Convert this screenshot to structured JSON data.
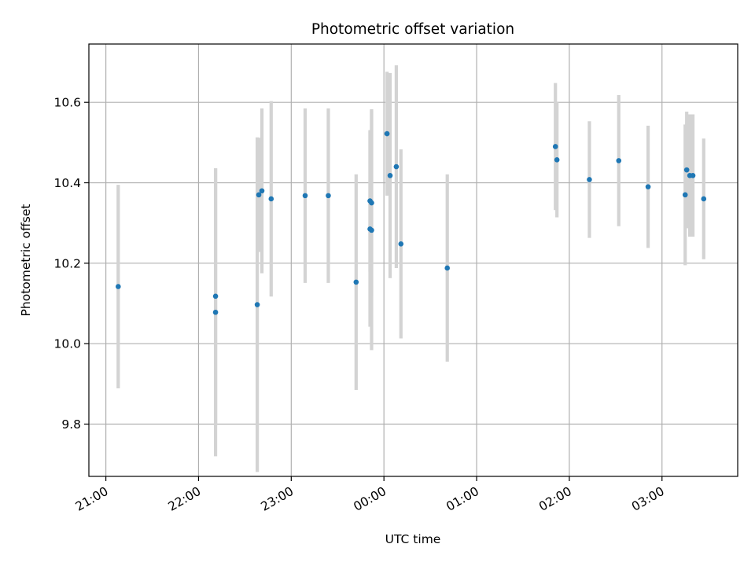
{
  "chart_data": {
    "type": "scatter",
    "title": "Photometric offset variation",
    "xlabel": "UTC time",
    "ylabel": "Photometric offset",
    "xlim": [
      "20:49",
      "03:49"
    ],
    "ylim": [
      9.67,
      10.745
    ],
    "x_ticks": [
      "21:00",
      "22:00",
      "23:00",
      "00:00",
      "01:00",
      "02:00",
      "03:00"
    ],
    "y_ticks": [
      "9.8",
      "10.0",
      "10.2",
      "10.4",
      "10.6"
    ],
    "grid": true,
    "legend": "none",
    "colors": {
      "marker": "#1f77b4",
      "errorbar": "#d3d3d3",
      "grid": "#b0b0b0"
    },
    "points": [
      {
        "t": "21:08",
        "y": 10.142,
        "err": 0.253
      },
      {
        "t": "22:11",
        "y": 10.118,
        "err": 0.318
      },
      {
        "t": "22:11",
        "y": 10.078,
        "err": 0.358
      },
      {
        "t": "22:38",
        "y": 10.097,
        "err": 0.416
      },
      {
        "t": "22:39",
        "y": 10.37,
        "err": 0.142
      },
      {
        "t": "22:41",
        "y": 10.38,
        "err": 0.205
      },
      {
        "t": "22:47",
        "y": 10.36,
        "err": 0.243
      },
      {
        "t": "23:09",
        "y": 10.368,
        "err": 0.217
      },
      {
        "t": "23:24",
        "y": 10.368,
        "err": 0.217
      },
      {
        "t": "23:42",
        "y": 10.153,
        "err": 0.268
      },
      {
        "t": "23:51",
        "y": 10.355,
        "err": 0.176
      },
      {
        "t": "23:51",
        "y": 10.285,
        "err": 0.243
      },
      {
        "t": "23:52",
        "y": 10.282,
        "err": 0.298
      },
      {
        "t": "23:52",
        "y": 10.35,
        "err": 0.233
      },
      {
        "t": "00:02",
        "y": 10.522,
        "err": 0.154
      },
      {
        "t": "00:04",
        "y": 10.418,
        "err": 0.255
      },
      {
        "t": "00:08",
        "y": 10.44,
        "err": 0.252
      },
      {
        "t": "00:11",
        "y": 10.248,
        "err": 0.235
      },
      {
        "t": "00:41",
        "y": 10.188,
        "err": 0.233
      },
      {
        "t": "01:51",
        "y": 10.49,
        "err": 0.158
      },
      {
        "t": "01:52",
        "y": 10.457,
        "err": 0.143
      },
      {
        "t": "02:13",
        "y": 10.408,
        "err": 0.145
      },
      {
        "t": "02:32",
        "y": 10.455,
        "err": 0.163
      },
      {
        "t": "02:51",
        "y": 10.39,
        "err": 0.152
      },
      {
        "t": "03:15",
        "y": 10.37,
        "err": 0.175
      },
      {
        "t": "03:16",
        "y": 10.432,
        "err": 0.145
      },
      {
        "t": "03:18",
        "y": 10.418,
        "err": 0.152
      },
      {
        "t": "03:20",
        "y": 10.418,
        "err": 0.152
      },
      {
        "t": "03:27",
        "y": 10.36,
        "err": 0.15
      }
    ]
  }
}
